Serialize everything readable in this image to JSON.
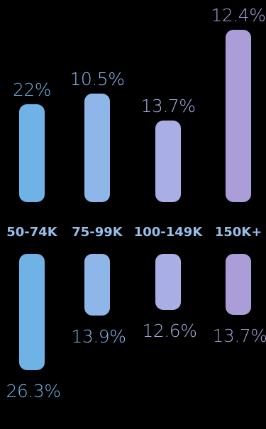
{
  "chart_data": {
    "type": "bar",
    "categories": [
      "50-74K",
      "75-99K",
      "100-149K",
      "150K+"
    ],
    "series": [
      {
        "values": [
          22,
          10.5,
          13.7,
          12.4
        ],
        "labels": [
          "22%",
          "10.5%",
          "13.7%",
          "12.4%"
        ]
      },
      {
        "values": [
          26.3,
          13.9,
          12.6,
          13.7
        ],
        "labels": [
          "26.3%",
          "13.9%",
          "12.6%",
          "13.7%"
        ]
      }
    ],
    "colors": [
      "#6fb3e6",
      "#8fb6e9",
      "#a9aee4",
      "#ab9ed8"
    ],
    "category_label_color": "#96bfe9"
  }
}
